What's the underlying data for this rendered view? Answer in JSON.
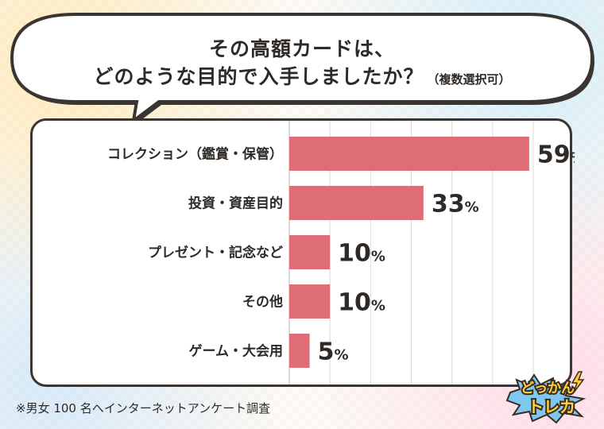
{
  "header": {
    "title_line1": "その高額カードは、",
    "title_line2": "どのような目的で入手しましたか？",
    "title_note": "（複数選択可）"
  },
  "chart_data": {
    "type": "bar",
    "orientation": "horizontal",
    "categories": [
      "コレクション（鑑賞・保管）",
      "投資・資産目的",
      "プレゼント・記念など",
      "その他",
      "ゲーム・大会用"
    ],
    "values": [
      59,
      33,
      10,
      10,
      5
    ],
    "value_labels": [
      "59",
      "33",
      "10",
      "10",
      "5"
    ],
    "unit": "%",
    "xlim": [
      0,
      60
    ],
    "grid": true,
    "bar_color": "#df6d78"
  },
  "footnote": "※男女 100 名へインターネットアンケート調査",
  "logo": {
    "line1": "どっかん",
    "line2": "トレカ",
    "colors": {
      "fill": "#ffd23a",
      "outline": "#3b2a1e",
      "accent": "#7cc8f0"
    }
  }
}
